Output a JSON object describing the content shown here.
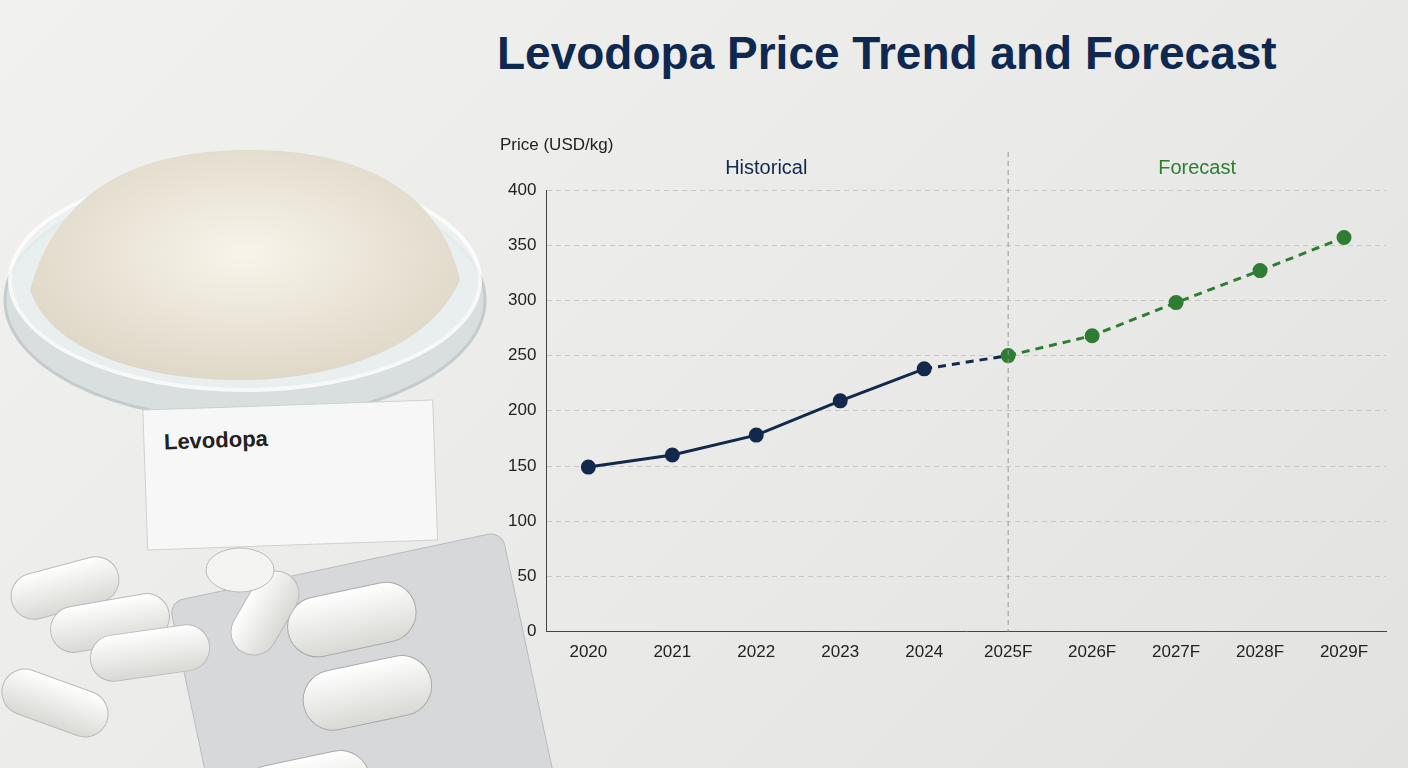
{
  "chart_data": {
    "type": "line",
    "title": "Levodopa Price Trend and Forecast",
    "y_label": "Price (USD/kg)",
    "image_label": "Levodopa",
    "categories": [
      "2020",
      "2021",
      "2022",
      "2023",
      "2024",
      "2025F",
      "2026F",
      "2027F",
      "2028F",
      "2029F"
    ],
    "series": [
      {
        "name": "Historical",
        "color": "#13294b",
        "line_style": "solid",
        "marker": "circle",
        "values": [
          149,
          160,
          178,
          209,
          238,
          null,
          null,
          null,
          null,
          null
        ]
      },
      {
        "name": "Forecast",
        "color": "#2e7d32",
        "line_style": "dashed",
        "marker": "circle",
        "values": [
          null,
          null,
          null,
          null,
          null,
          250,
          268,
          298,
          327,
          357
        ]
      }
    ],
    "ylim": [
      0,
      400
    ],
    "yticks": [
      0,
      50,
      100,
      150,
      200,
      250,
      300,
      350,
      400
    ],
    "grid": true
  }
}
